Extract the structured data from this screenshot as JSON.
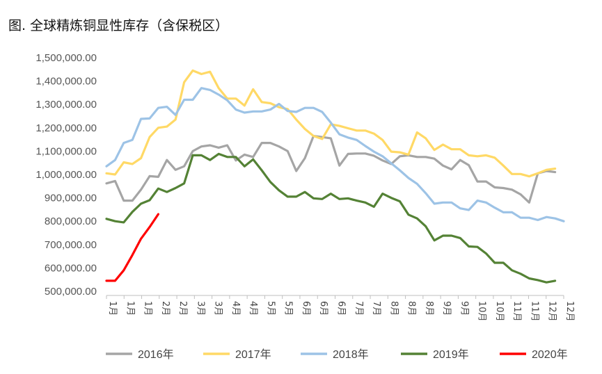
{
  "chart_data": {
    "type": "line",
    "title": "图. 全球精炼铜显性库存（含保税区）",
    "ylim": [
      500000,
      1500000
    ],
    "yticks": [
      500000,
      600000,
      700000,
      800000,
      900000,
      1000000,
      1100000,
      1200000,
      1300000,
      1400000,
      1500000
    ],
    "ytick_labels": [
      "500,000.00",
      "600,000.00",
      "700,000.00",
      "800,000.00",
      "900,000.00",
      "1,000,000.00",
      "1,100,000.00",
      "1,200,000.00",
      "1,300,000.00",
      "1,400,000.00",
      "1,500,000.00"
    ],
    "x_labels": [
      "1月",
      "1月",
      "1月",
      "2月",
      "2月",
      "3月",
      "3月",
      "4月",
      "4月",
      "5月",
      "5月",
      "6月",
      "6月",
      "6月",
      "7月",
      "7月",
      "8月",
      "8月",
      "8月",
      "9月",
      "9月",
      "10月",
      "10月",
      "11月",
      "11月",
      "12月",
      "12月"
    ],
    "grid": false,
    "legend_position": "bottom",
    "series": [
      {
        "name": "2016年",
        "color": "#a5a5a5",
        "values": [
          962000,
          972000,
          888000,
          888000,
          935000,
          993000,
          990000,
          1062000,
          1020000,
          1035000,
          1100000,
          1120000,
          1125000,
          1115000,
          1125000,
          1060000,
          1085000,
          1075000,
          1135000,
          1135000,
          1120000,
          1100000,
          1015000,
          1070000,
          1165000,
          1160000,
          1155000,
          1038000,
          1088000,
          1090000,
          1090000,
          1080000,
          1060000,
          1045000,
          1078000,
          1082000,
          1075000,
          1075000,
          1068000,
          1038000,
          1022000,
          1062000,
          1040000,
          970000,
          970000,
          945000,
          942000,
          935000,
          915000,
          880000,
          1005000,
          1015000,
          1010000
        ]
      },
      {
        "name": "2017年",
        "color": "#ffd966",
        "values": [
          1005000,
          1000000,
          1052000,
          1045000,
          1070000,
          1160000,
          1200000,
          1205000,
          1235000,
          1395000,
          1445000,
          1430000,
          1440000,
          1370000,
          1325000,
          1325000,
          1295000,
          1365000,
          1310000,
          1305000,
          1288000,
          1280000,
          1235000,
          1195000,
          1165000,
          1152000,
          1215000,
          1208000,
          1198000,
          1188000,
          1188000,
          1175000,
          1148000,
          1098000,
          1095000,
          1085000,
          1180000,
          1155000,
          1105000,
          1128000,
          1108000,
          1108000,
          1082000,
          1078000,
          1082000,
          1072000,
          1038000,
          1002000,
          1002000,
          992000,
          1005000,
          1020000,
          1025000
        ]
      },
      {
        "name": "2018年",
        "color": "#9dc3e6",
        "values": [
          1035000,
          1062000,
          1135000,
          1148000,
          1238000,
          1240000,
          1285000,
          1290000,
          1255000,
          1320000,
          1320000,
          1370000,
          1362000,
          1342000,
          1318000,
          1278000,
          1265000,
          1270000,
          1270000,
          1278000,
          1302000,
          1272000,
          1268000,
          1285000,
          1285000,
          1268000,
          1222000,
          1172000,
          1158000,
          1148000,
          1122000,
          1098000,
          1078000,
          1048000,
          1018000,
          985000,
          960000,
          920000,
          875000,
          880000,
          880000,
          855000,
          848000,
          888000,
          880000,
          858000,
          838000,
          838000,
          815000,
          815000,
          805000,
          818000,
          812000,
          800000
        ]
      },
      {
        "name": "2019年",
        "color": "#548235",
        "values": [
          810000,
          800000,
          795000,
          840000,
          875000,
          890000,
          940000,
          925000,
          942000,
          962000,
          1082000,
          1082000,
          1062000,
          1088000,
          1075000,
          1075000,
          1035000,
          1065000,
          1018000,
          968000,
          932000,
          905000,
          905000,
          925000,
          898000,
          895000,
          918000,
          895000,
          898000,
          888000,
          880000,
          862000,
          918000,
          900000,
          885000,
          828000,
          812000,
          778000,
          718000,
          738000,
          738000,
          728000,
          692000,
          690000,
          662000,
          622000,
          622000,
          590000,
          575000,
          555000,
          548000,
          538000,
          545000
        ]
      },
      {
        "name": "2020年",
        "color": "#ff0000",
        "values": [
          545000,
          545000,
          590000,
          655000,
          725000,
          775000,
          830000
        ]
      }
    ]
  }
}
